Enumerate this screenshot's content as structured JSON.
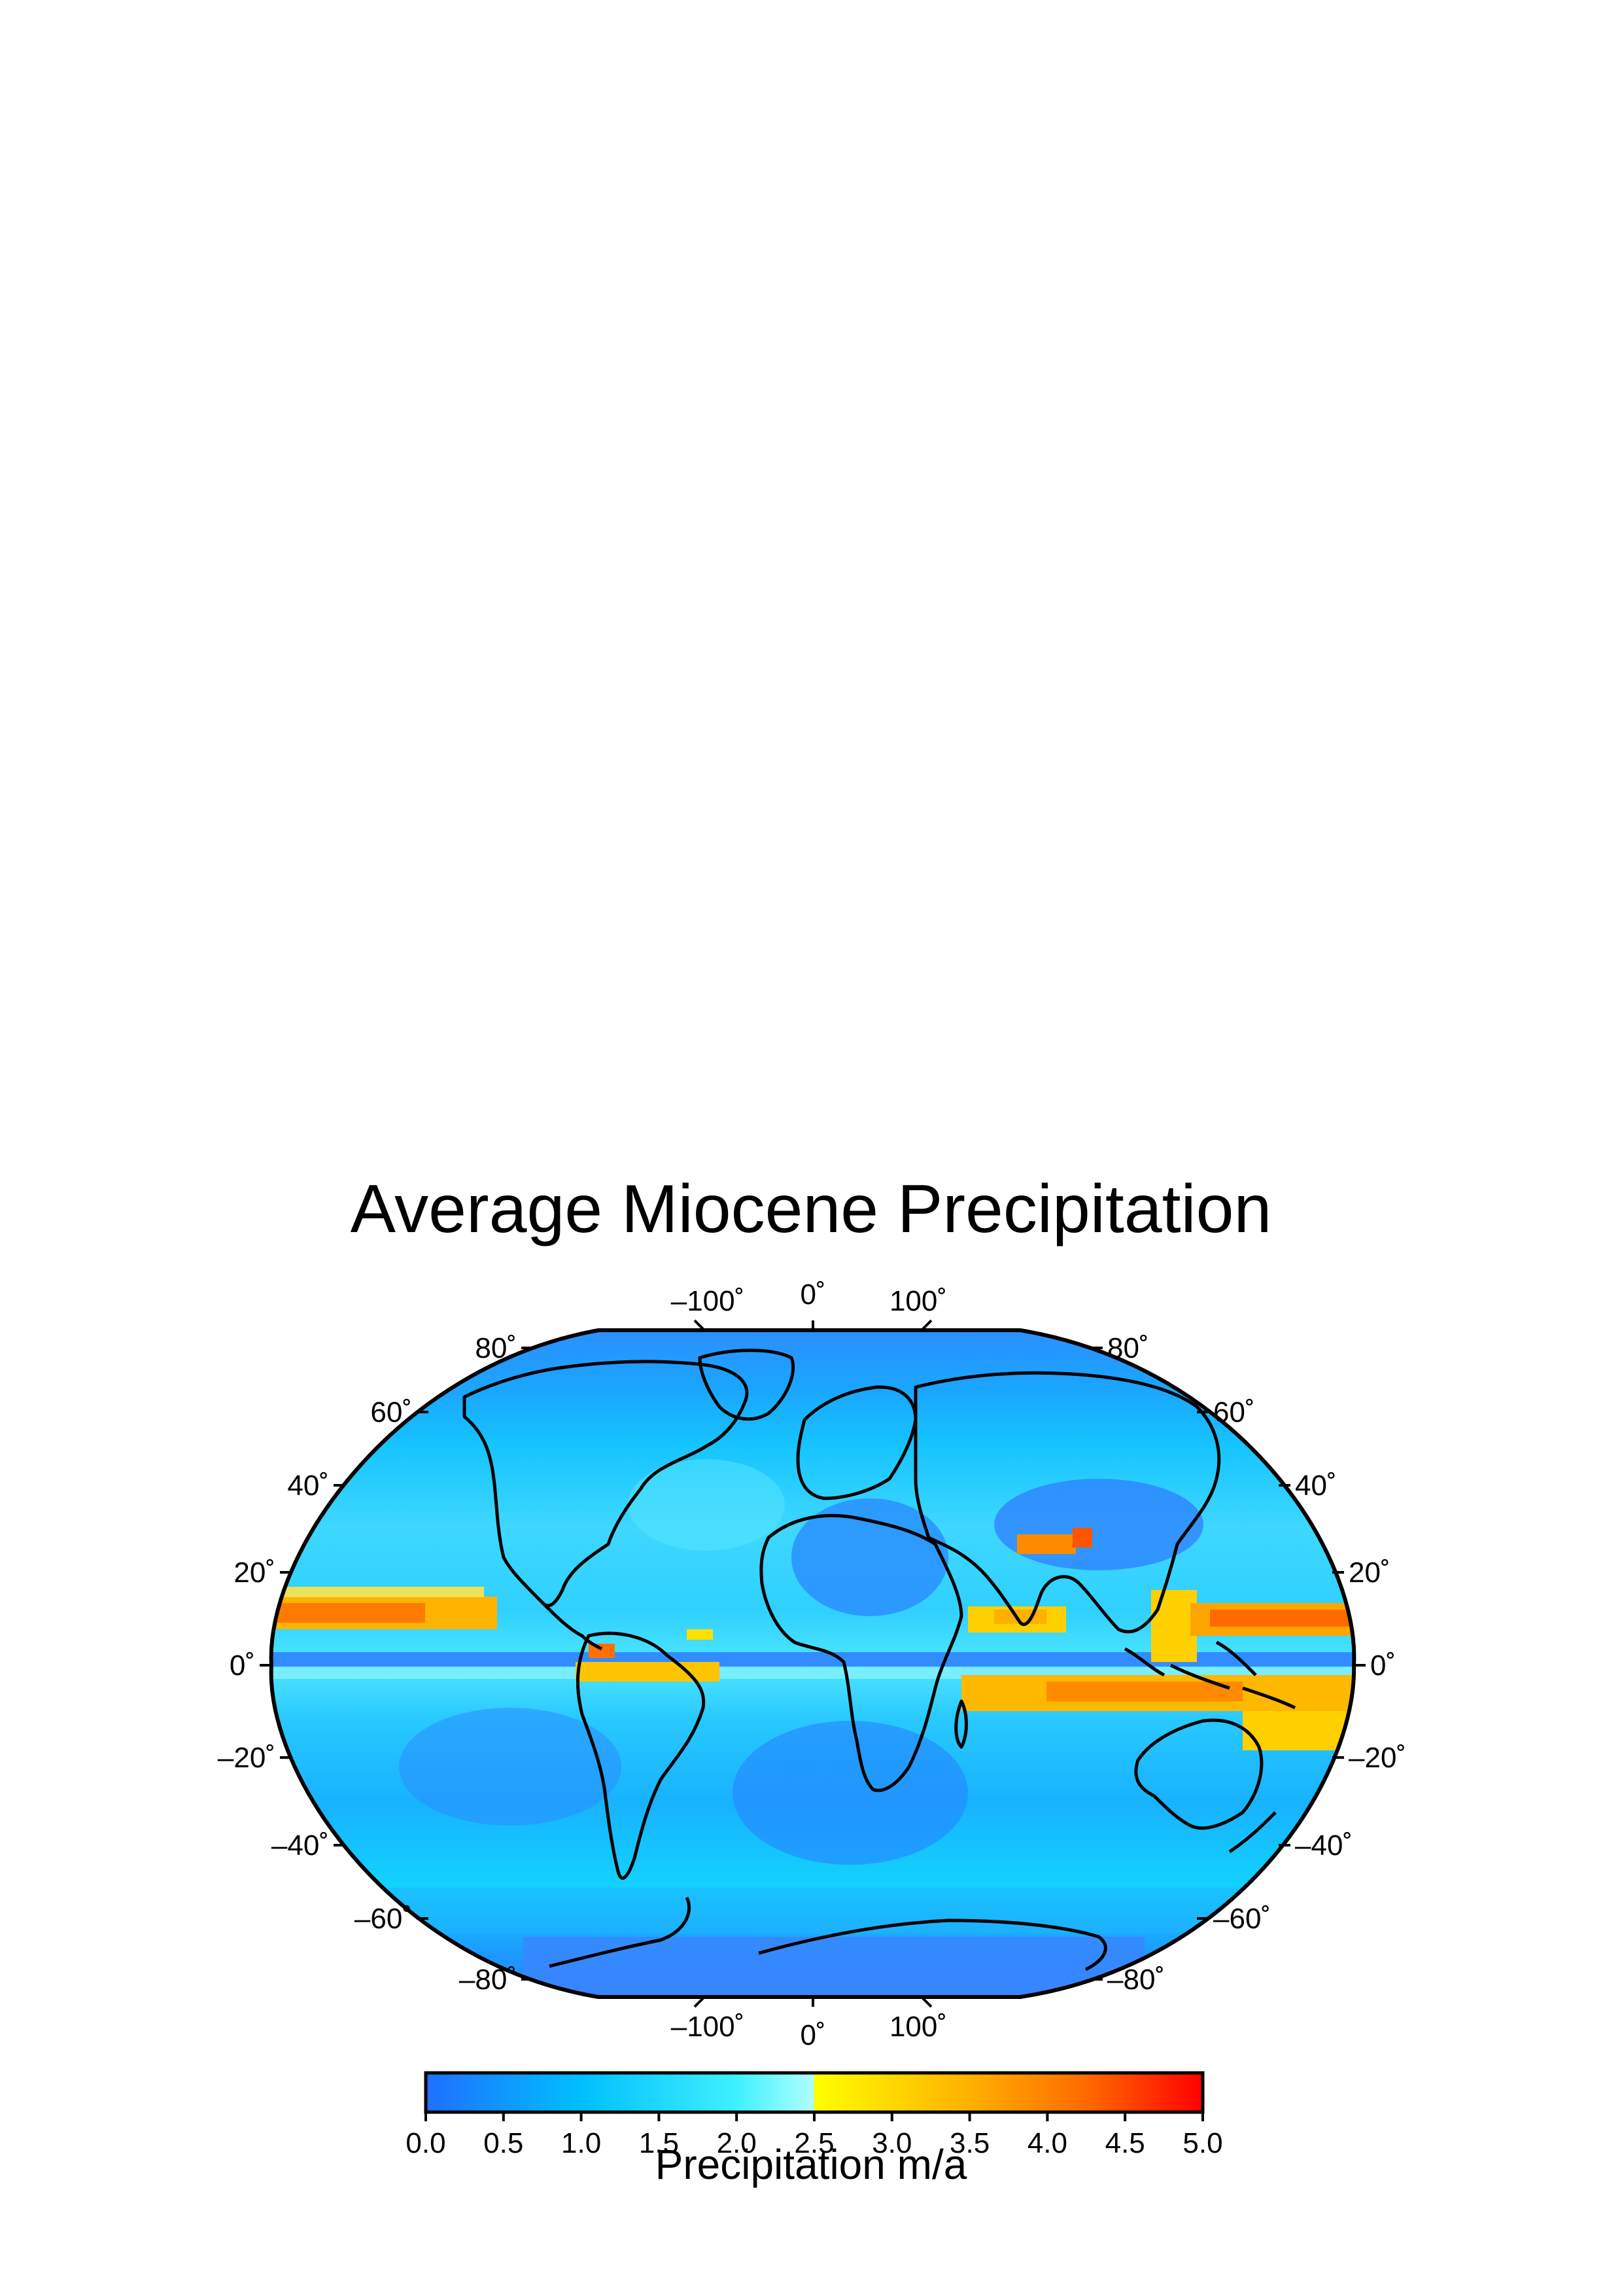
{
  "title": "Average Miocene Precipitation",
  "map": {
    "variable": "Precipitation",
    "projection": "Winkel tripel (global)",
    "colors": {
      "low": "#1f78ff",
      "mid_low": "#00c8ff",
      "mid": "#7fffff",
      "high_start": "#ffff00",
      "high_mid": "#ffa000",
      "high_end": "#ff0000"
    },
    "lat_labels_left": [
      "80˚",
      "60˚",
      "40˚",
      "20˚",
      "0˚",
      "–20˚",
      "–40˚",
      "–60˚",
      "–80˚"
    ],
    "lat_labels_right": [
      "80˚",
      "60˚",
      "40˚",
      "20˚",
      "0˚",
      "–20˚",
      "–40˚",
      "–60˚",
      "–80˚"
    ],
    "lon_labels_top": [
      "–100˚",
      "0˚",
      "100˚"
    ],
    "lon_labels_bottom": [
      "–100˚",
      "0˚",
      "100˚"
    ]
  },
  "colorbar": {
    "ticks": [
      "0.0",
      "0.5",
      "1.0",
      "1.5",
      "2.0",
      "2.5",
      "3.0",
      "3.5",
      "4.0",
      "4.5",
      "5.0"
    ],
    "label": "Precipitation m/a",
    "min": 0,
    "max": 5
  }
}
